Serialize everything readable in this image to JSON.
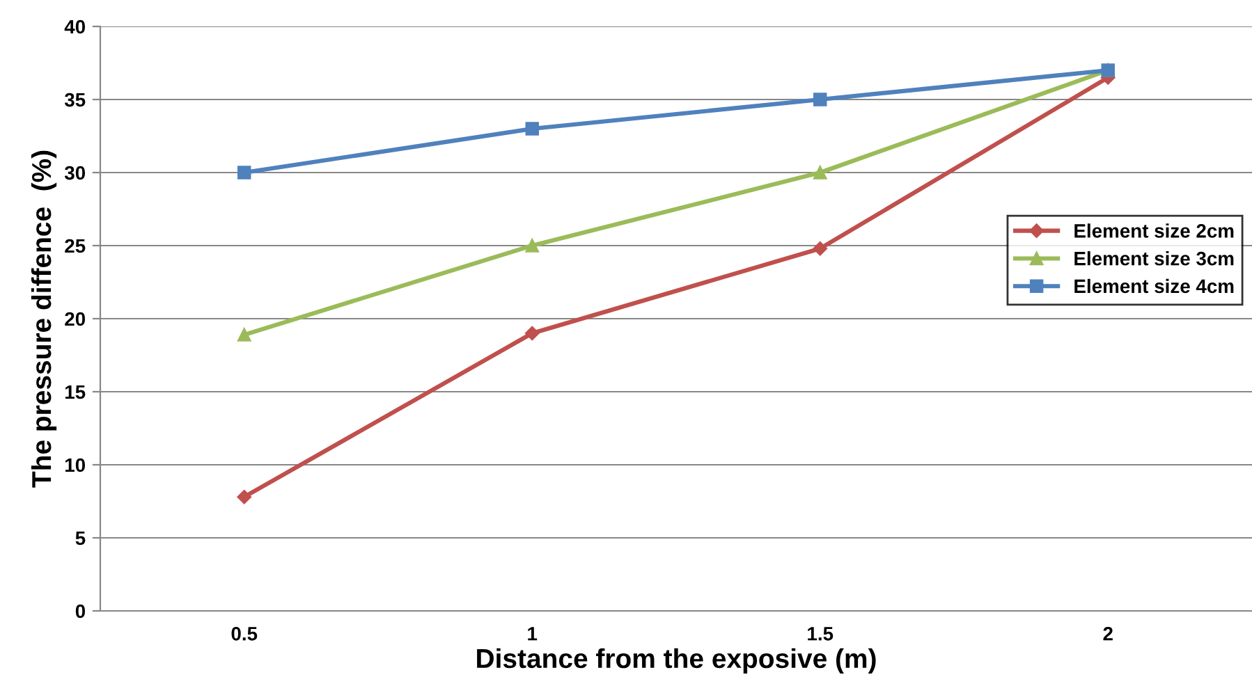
{
  "chart_data": {
    "type": "line",
    "xlabel": "Distance from the exposive (m)",
    "ylabel": "The pressure diffence  (%)",
    "categories": [
      "0.5",
      "1",
      "1.5",
      "2"
    ],
    "series": [
      {
        "name": "Element size 2cm",
        "color": "#c0504d",
        "marker": "diamond",
        "values": [
          7.8,
          19,
          24.8,
          36.5
        ]
      },
      {
        "name": "Element size 3cm",
        "color": "#9bbb59",
        "marker": "triangle",
        "values": [
          18.9,
          25,
          30,
          37
        ]
      },
      {
        "name": "Element size 4cm",
        "color": "#4f81bd",
        "marker": "square",
        "values": [
          30,
          33,
          35,
          37
        ]
      }
    ],
    "ylim": [
      0,
      40
    ],
    "yticks": [
      0,
      5,
      10,
      15,
      20,
      25,
      30,
      35,
      40
    ],
    "grid": "y",
    "legend": "right",
    "line_style": "solid"
  }
}
